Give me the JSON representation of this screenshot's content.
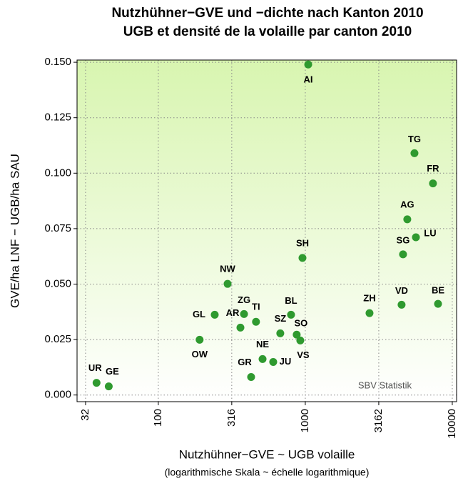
{
  "chart_data": {
    "type": "scatter",
    "title": "Nutzhühner−GVE und −dichte nach Kanton 2010",
    "subtitle": "UGB et densité de la volaille par canton 2010",
    "x_label": "Nutzhühner−GVE ~ UGB volaille",
    "x_sublabel": "(logarithmische Skala ~ échelle logarithmique)",
    "y_label": "GVE/ha LNF − UGB/ha SAU",
    "annotation": "SBV Statistik",
    "x_log": true,
    "grid": true,
    "color": "#2f9a2f",
    "xlim": [
      28,
      10700
    ],
    "ylim": [
      -0.003,
      0.151
    ],
    "xticks": [
      32,
      100,
      316,
      1000,
      3162,
      10000
    ],
    "yticks": [
      {
        "value": 0,
        "label": "0.000"
      },
      {
        "value": 0.025,
        "label": "0.025"
      },
      {
        "value": 0.05,
        "label": "0.050"
      },
      {
        "value": 0.075,
        "label": "0.075"
      },
      {
        "value": 0.1,
        "label": "0.100"
      },
      {
        "value": 0.125,
        "label": "0.125"
      },
      {
        "value": 0.15,
        "label": "0.150"
      }
    ],
    "labels": [
      "UR",
      "GE",
      "OW",
      "GL",
      "NW",
      "AR",
      "ZG",
      "TI",
      "GR",
      "NE",
      "JU",
      "SZ",
      "BL",
      "SO",
      "VS",
      "SH",
      "AI",
      "ZH",
      "VD",
      "SG",
      "AG",
      "LU",
      "TG",
      "FR",
      "BE"
    ],
    "x": [
      38,
      46,
      191,
      242,
      296,
      362,
      383,
      462,
      428,
      512,
      605,
      676,
      800,
      874,
      925,
      957,
      1047,
      2735,
      4520,
      4624,
      4943,
      5657,
      5530,
      7390,
      8000
    ],
    "values": [
      0.0055,
      0.0039,
      0.0249,
      0.0362,
      0.0501,
      0.0304,
      0.0365,
      0.033,
      0.0081,
      0.0162,
      0.0149,
      0.0278,
      0.0362,
      0.0272,
      0.0246,
      0.0618,
      0.149,
      0.0369,
      0.0407,
      0.0634,
      0.0792,
      0.0711,
      0.109,
      0.0954,
      0.0411
    ]
  }
}
